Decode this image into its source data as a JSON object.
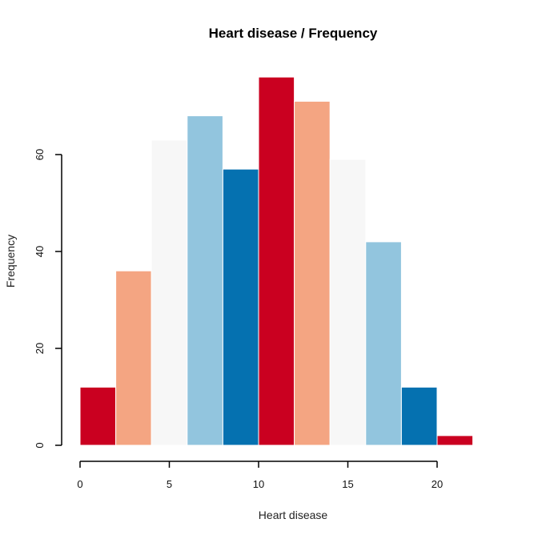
{
  "chart_data": {
    "type": "bar",
    "title": "Heart disease / Frequency",
    "xlabel": "Heart disease",
    "ylabel": "Frequency",
    "bin_edges": [
      0,
      2,
      4,
      6,
      8,
      10,
      12,
      14,
      16,
      18,
      20,
      22
    ],
    "values": [
      12,
      36,
      63,
      68,
      57,
      76,
      71,
      59,
      42,
      12,
      2
    ],
    "bar_colors": [
      "#CA0020",
      "#F4A582",
      "#F7F7F7",
      "#92C5DE",
      "#0571B0",
      "#CA0020",
      "#F4A582",
      "#F7F7F7",
      "#92C5DE",
      "#0571B0",
      "#CA0020"
    ],
    "xlim": [
      0,
      22
    ],
    "ylim": [
      0,
      76
    ],
    "x_ticks": [
      0,
      5,
      10,
      15,
      20
    ],
    "x_tick_labels": [
      "0",
      "5",
      "10",
      "15",
      "20"
    ],
    "y_ticks": [
      0,
      20,
      40,
      60
    ],
    "y_tick_labels": [
      "0",
      "20",
      "40",
      "60"
    ],
    "grid": false,
    "legend": "none"
  }
}
